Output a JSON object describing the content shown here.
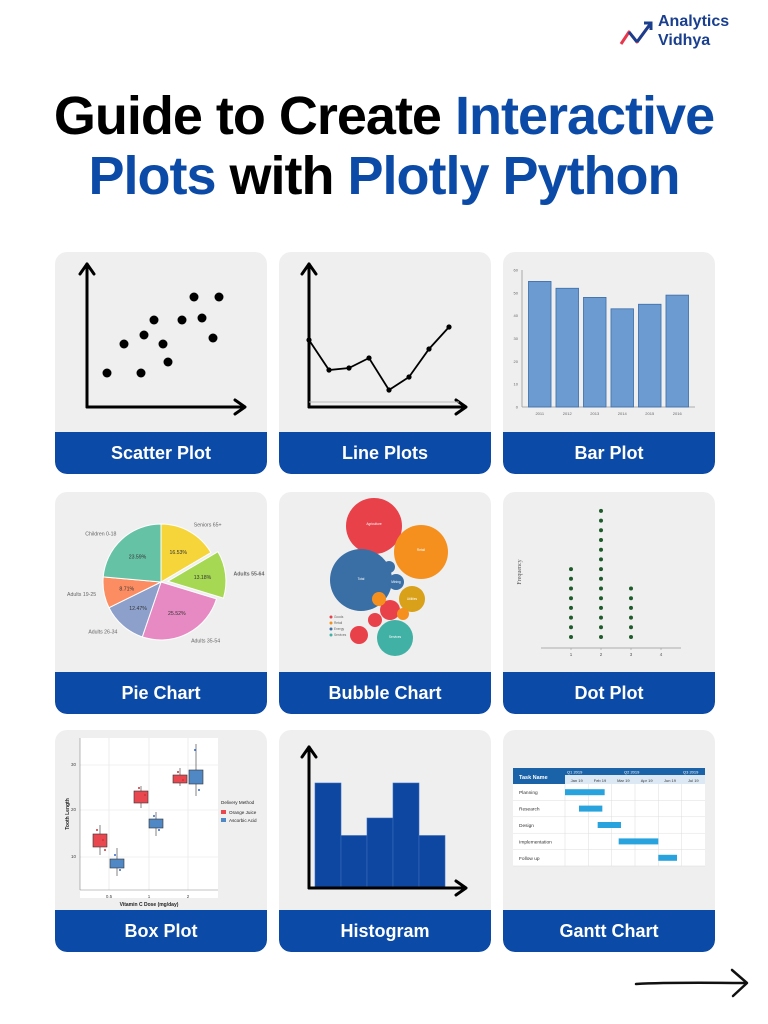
{
  "brand": {
    "line1": "Analytics",
    "line2": "Vidhya"
  },
  "title": {
    "l1a": "Guide to Create ",
    "l1b": "Interactive",
    "l2a": "Plots",
    "l2b": " with ",
    "l2c": "Plotly Python"
  },
  "cards": [
    {
      "label": "Scatter Plot"
    },
    {
      "label": "Line Plots"
    },
    {
      "label": "Bar Plot"
    },
    {
      "label": "Pie Chart"
    },
    {
      "label": "Bubble Chart"
    },
    {
      "label": "Dot Plot"
    },
    {
      "label": "Box Plot"
    },
    {
      "label": "Histogram"
    },
    {
      "label": "Gantt Chart"
    }
  ],
  "bar_plot": {
    "categories": [
      "2011",
      "2012",
      "2013",
      "2014",
      "2015",
      "2016"
    ],
    "values": [
      55,
      52,
      48,
      43,
      45,
      49
    ],
    "yticks": [
      "0",
      "10",
      "20",
      "30",
      "40",
      "50",
      "60"
    ],
    "ylim": [
      0,
      60
    ]
  },
  "pie_chart": {
    "slices": [
      {
        "name": "Seniors 65+",
        "pct": "16.53%",
        "value": 16.53,
        "color": "#f5d53a"
      },
      {
        "name": "Adults 55-64",
        "pct": "13.18%",
        "value": 13.18,
        "color": "#a6d854"
      },
      {
        "name": "Adults 35-54",
        "pct": "25.52%",
        "value": 25.52,
        "color": "#e78ac3"
      },
      {
        "name": "Adults 26-34",
        "pct": "12.47%",
        "value": 12.47,
        "color": "#8da0cb"
      },
      {
        "name": "Adults 19-25",
        "pct": "8.71%",
        "value": 8.71,
        "color": "#fc8d62"
      },
      {
        "name": "Children 0-18",
        "pct": "23.59%",
        "value": 23.59,
        "color": "#66c2a5"
      }
    ]
  },
  "bubble_chart": {
    "bubbles": [
      {
        "name": "Agriculture",
        "color": "#e84149"
      },
      {
        "name": "Retail",
        "color": "#f5901e"
      },
      {
        "name": "Total",
        "color": "#3a6fa5"
      },
      {
        "name": "Mining",
        "color": "#3a6fa5"
      },
      {
        "name": "Utilities",
        "color": "#d9a019"
      },
      {
        "name": "Services",
        "color": "#42b1a5"
      }
    ],
    "legend": [
      "Goods",
      "Retail",
      "Energy",
      "Services"
    ]
  },
  "dot_plot": {
    "ylabel": "Frequency",
    "x": [
      "1",
      "2",
      "3",
      "4"
    ],
    "counts": [
      8,
      14,
      6,
      0
    ]
  },
  "box_plot": {
    "ylabel": "Tooth Length",
    "xlabel": "Vitamin C Dose (mg/day)",
    "xticks": [
      "0.5",
      "1",
      "2"
    ],
    "yticks": [
      "10",
      "20",
      "30"
    ],
    "legend_title": "Delivery Method",
    "legend": [
      {
        "name": "Orange Juice",
        "color": "#e8474f"
      },
      {
        "name": "Ascorbic Acid",
        "color": "#4f88c4"
      }
    ]
  },
  "histogram": {
    "values": [
      6,
      3,
      4,
      6,
      3
    ],
    "color": "#0d47a1"
  },
  "gantt_chart": {
    "header": "Task Name",
    "quarters": [
      "Q1 2019",
      "Q2 2019",
      "Q3 2019"
    ],
    "months": [
      "Jan 19",
      "Feb 19",
      "Mar 19",
      "Apr 19",
      "Jun 19",
      "Jul 19"
    ],
    "tasks": [
      {
        "name": "Planning",
        "start": 1.0,
        "end": 2.7
      },
      {
        "name": "Research",
        "start": 1.6,
        "end": 2.6
      },
      {
        "name": "Design",
        "start": 2.4,
        "end": 3.4
      },
      {
        "name": "Implementation",
        "start": 3.3,
        "end": 5.0
      },
      {
        "name": "Follow up",
        "start": 5.0,
        "end": 5.8
      }
    ],
    "bar_color": "#29a3dd",
    "header_color": "#1b63a8"
  },
  "colors": {
    "accent": "#0b4aa6",
    "card_bg": "#efefef"
  }
}
